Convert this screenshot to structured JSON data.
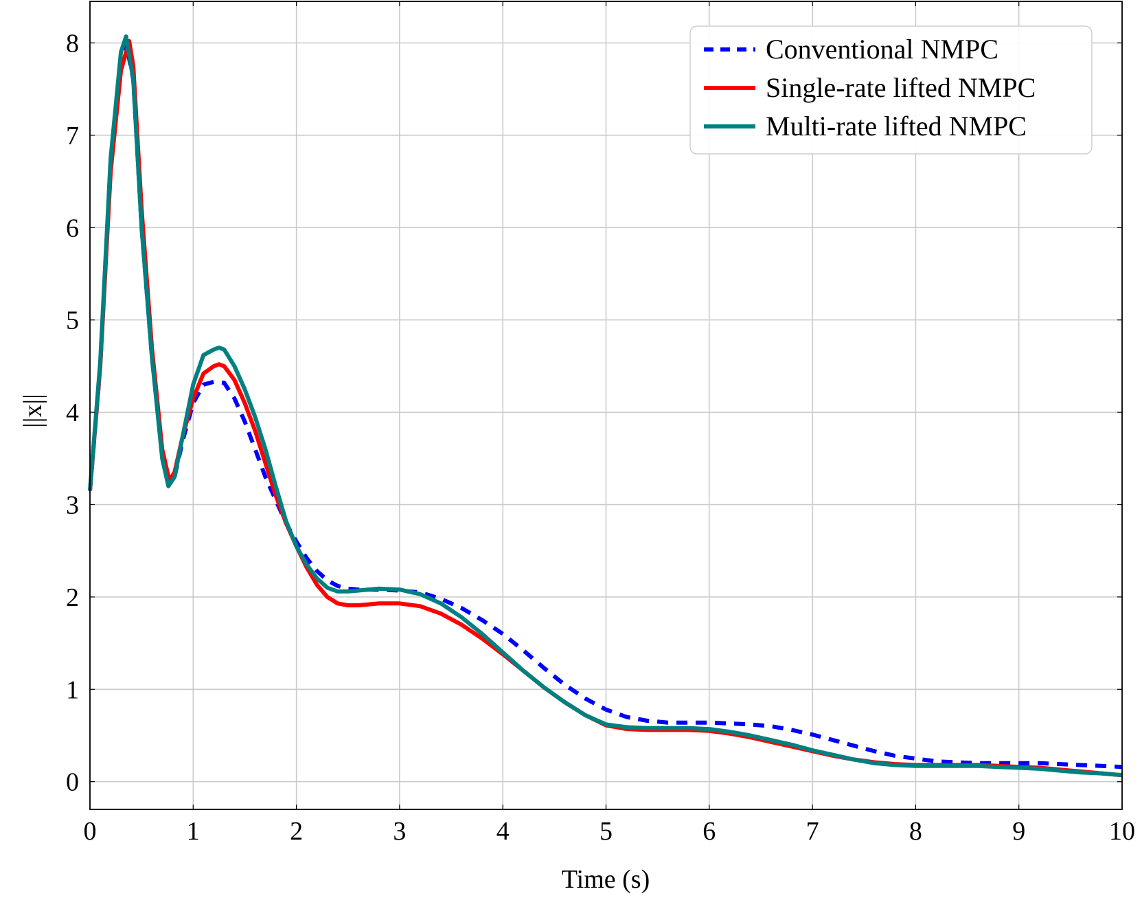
{
  "chart_data": {
    "type": "line",
    "xlabel": "Time (s)",
    "ylabel": "||x||",
    "xlim": [
      0,
      10
    ],
    "ylim": [
      -0.3,
      8.45
    ],
    "xticks": [
      "0",
      "1",
      "2",
      "3",
      "4",
      "5",
      "6",
      "7",
      "8",
      "9",
      "10"
    ],
    "yticks": [
      "0",
      "1",
      "2",
      "3",
      "4",
      "5",
      "6",
      "7",
      "8"
    ],
    "grid": true,
    "legend_position": "top-right",
    "series": [
      {
        "name": "Conventional NMPC",
        "color": "#0000ff",
        "dash": true,
        "x": [
          0,
          0.1,
          0.2,
          0.3,
          0.35,
          0.42,
          0.5,
          0.6,
          0.7,
          0.76,
          0.82,
          0.9,
          1.0,
          1.1,
          1.2,
          1.3,
          1.4,
          1.5,
          1.6,
          1.7,
          1.8,
          1.9,
          2.0,
          2.1,
          2.2,
          2.3,
          2.4,
          2.5,
          2.6,
          2.8,
          3.0,
          3.2,
          3.4,
          3.6,
          3.8,
          4.0,
          4.2,
          4.4,
          4.6,
          4.8,
          5.0,
          5.2,
          5.4,
          5.6,
          5.8,
          6.0,
          6.2,
          6.4,
          6.6,
          6.8,
          7.0,
          7.2,
          7.4,
          7.6,
          7.8,
          8.0,
          8.2,
          8.4,
          8.6,
          8.8,
          9.0,
          9.2,
          9.4,
          9.6,
          9.8,
          10.0
        ],
        "y": [
          3.15,
          4.5,
          6.7,
          7.85,
          8.0,
          7.6,
          6.0,
          4.6,
          3.55,
          3.22,
          3.3,
          3.7,
          4.1,
          4.3,
          4.33,
          4.32,
          4.15,
          3.9,
          3.6,
          3.3,
          3.05,
          2.8,
          2.6,
          2.42,
          2.28,
          2.18,
          2.12,
          2.09,
          2.08,
          2.08,
          2.07,
          2.05,
          1.98,
          1.88,
          1.75,
          1.6,
          1.42,
          1.23,
          1.05,
          0.9,
          0.78,
          0.7,
          0.66,
          0.64,
          0.64,
          0.64,
          0.63,
          0.62,
          0.6,
          0.56,
          0.51,
          0.45,
          0.39,
          0.33,
          0.28,
          0.25,
          0.22,
          0.21,
          0.2,
          0.2,
          0.2,
          0.2,
          0.19,
          0.18,
          0.17,
          0.16
        ]
      },
      {
        "name": "Single-rate lifted NMPC",
        "color": "#ff0000",
        "dash": false,
        "x": [
          0,
          0.1,
          0.2,
          0.3,
          0.38,
          0.42,
          0.5,
          0.6,
          0.7,
          0.77,
          0.82,
          0.9,
          1.0,
          1.1,
          1.2,
          1.25,
          1.3,
          1.4,
          1.5,
          1.6,
          1.7,
          1.8,
          1.9,
          2.0,
          2.1,
          2.2,
          2.3,
          2.4,
          2.5,
          2.6,
          2.8,
          3.0,
          3.2,
          3.4,
          3.6,
          3.8,
          4.0,
          4.2,
          4.4,
          4.6,
          4.8,
          5.0,
          5.2,
          5.4,
          5.6,
          5.8,
          6.0,
          6.2,
          6.4,
          6.6,
          6.8,
          7.0,
          7.2,
          7.4,
          7.6,
          7.8,
          8.0,
          8.2,
          8.4,
          8.6,
          8.8,
          9.0,
          9.2,
          9.4,
          9.6,
          9.8,
          10.0
        ],
        "y": [
          3.15,
          4.5,
          6.6,
          7.7,
          8.02,
          7.75,
          6.2,
          4.7,
          3.6,
          3.26,
          3.35,
          3.75,
          4.15,
          4.42,
          4.5,
          4.52,
          4.5,
          4.35,
          4.1,
          3.8,
          3.45,
          3.1,
          2.8,
          2.55,
          2.32,
          2.13,
          2.0,
          1.93,
          1.91,
          1.91,
          1.93,
          1.93,
          1.9,
          1.82,
          1.7,
          1.55,
          1.38,
          1.2,
          1.02,
          0.86,
          0.72,
          0.61,
          0.57,
          0.56,
          0.56,
          0.56,
          0.55,
          0.52,
          0.48,
          0.43,
          0.38,
          0.33,
          0.28,
          0.24,
          0.21,
          0.19,
          0.18,
          0.18,
          0.18,
          0.18,
          0.17,
          0.16,
          0.15,
          0.13,
          0.11,
          0.09,
          0.07
        ]
      },
      {
        "name": "Multi-rate lifted NMPC",
        "color": "#008080",
        "dash": false,
        "x": [
          0,
          0.1,
          0.2,
          0.3,
          0.35,
          0.42,
          0.5,
          0.6,
          0.7,
          0.76,
          0.82,
          0.9,
          1.0,
          1.1,
          1.2,
          1.25,
          1.3,
          1.4,
          1.5,
          1.6,
          1.7,
          1.8,
          1.9,
          2.0,
          2.1,
          2.2,
          2.3,
          2.4,
          2.5,
          2.6,
          2.8,
          3.0,
          3.2,
          3.4,
          3.6,
          3.8,
          4.0,
          4.2,
          4.4,
          4.6,
          4.8,
          5.0,
          5.2,
          5.4,
          5.6,
          5.8,
          6.0,
          6.2,
          6.4,
          6.6,
          6.8,
          7.0,
          7.2,
          7.4,
          7.6,
          7.8,
          8.0,
          8.2,
          8.4,
          8.6,
          8.8,
          9.0,
          9.2,
          9.4,
          9.6,
          9.8,
          10.0
        ],
        "y": [
          3.15,
          4.55,
          6.75,
          7.9,
          8.07,
          7.6,
          6.0,
          4.6,
          3.5,
          3.2,
          3.3,
          3.75,
          4.3,
          4.62,
          4.68,
          4.7,
          4.68,
          4.5,
          4.25,
          3.95,
          3.6,
          3.2,
          2.82,
          2.55,
          2.35,
          2.2,
          2.1,
          2.06,
          2.06,
          2.07,
          2.09,
          2.08,
          2.03,
          1.93,
          1.78,
          1.6,
          1.4,
          1.2,
          1.02,
          0.86,
          0.72,
          0.62,
          0.59,
          0.58,
          0.58,
          0.58,
          0.57,
          0.54,
          0.5,
          0.45,
          0.4,
          0.34,
          0.29,
          0.24,
          0.2,
          0.18,
          0.17,
          0.17,
          0.17,
          0.17,
          0.16,
          0.15,
          0.14,
          0.12,
          0.1,
          0.09,
          0.07
        ]
      }
    ]
  }
}
